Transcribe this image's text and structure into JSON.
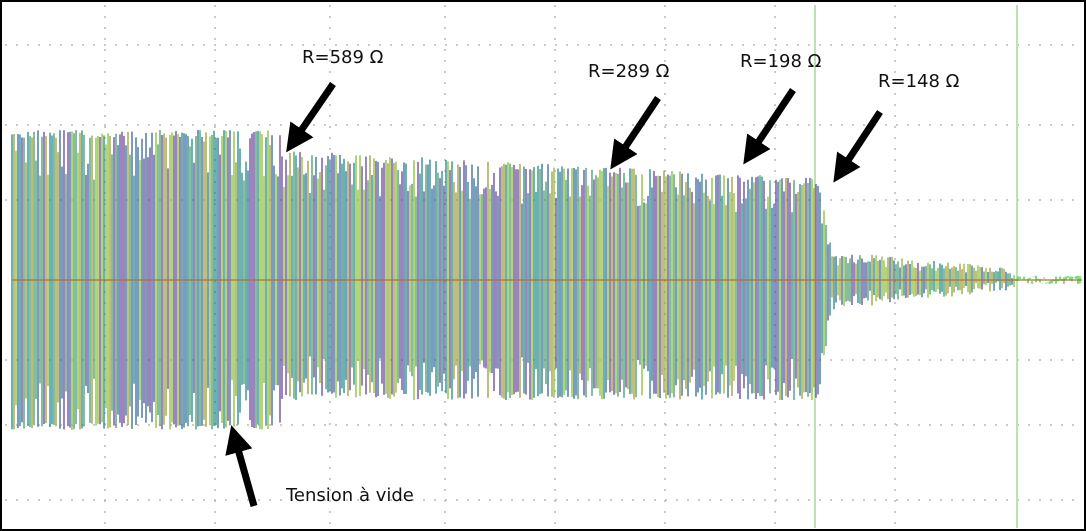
{
  "annotations": [
    {
      "label": "R=589 Ω"
    },
    {
      "label": "R=289 Ω"
    },
    {
      "label": "R=198 Ω"
    },
    {
      "label": "R=148 Ω"
    },
    {
      "label": "Tension à vide"
    }
  ]
}
